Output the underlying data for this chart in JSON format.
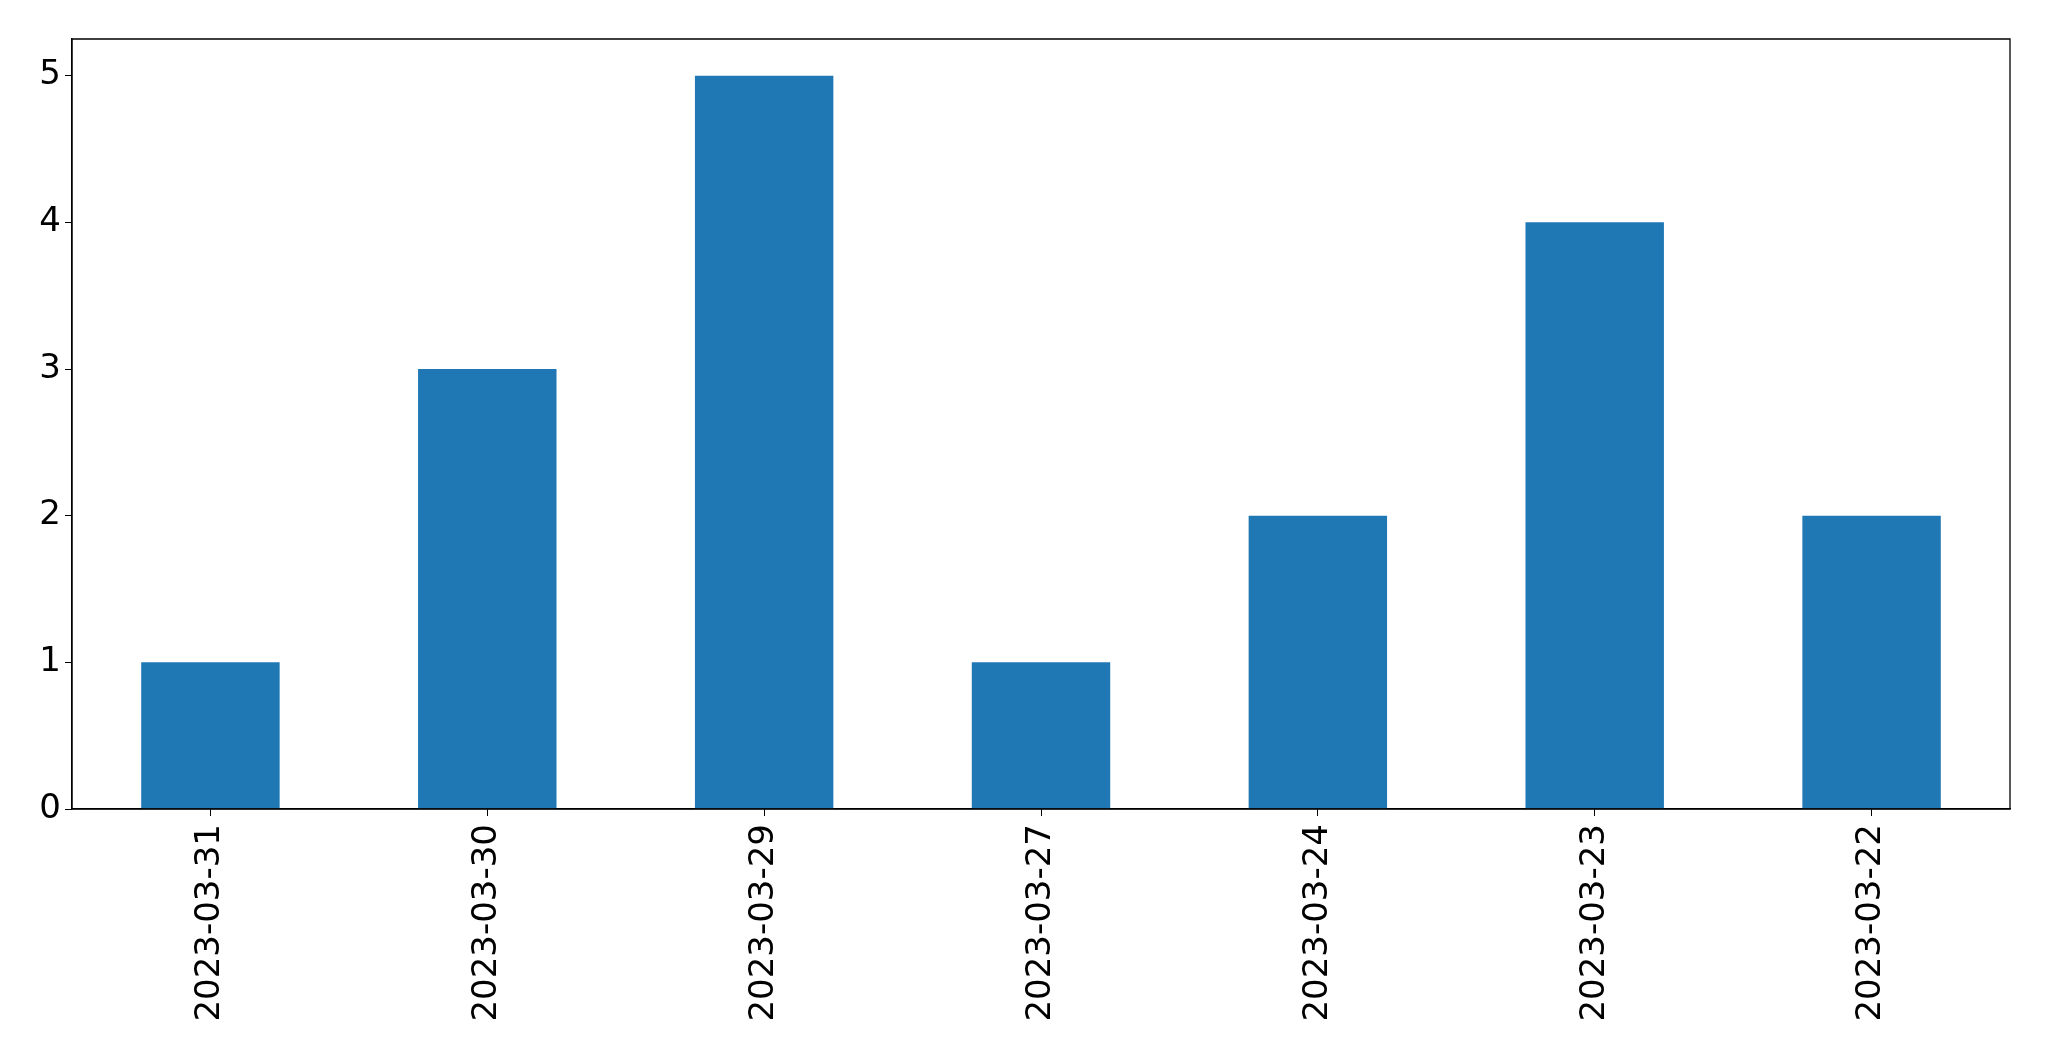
{
  "chart_data": {
    "type": "bar",
    "categories": [
      "2023-03-31",
      "2023-03-30",
      "2023-03-29",
      "2023-03-27",
      "2023-03-24",
      "2023-03-23",
      "2023-03-22"
    ],
    "values": [
      1,
      3,
      5,
      1,
      2,
      4,
      2
    ],
    "color": "#1f77b4",
    "ylim": [
      0,
      5.25
    ],
    "yticks": [
      0,
      1,
      2,
      3,
      4,
      5
    ],
    "grid": false,
    "legend": false
  }
}
